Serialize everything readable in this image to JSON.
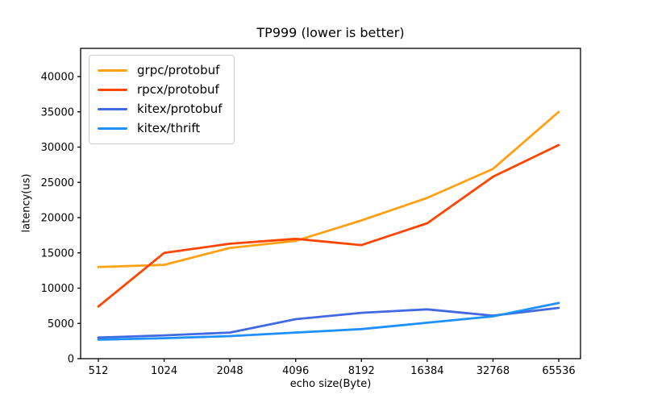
{
  "figure": {
    "background": "#ffffff",
    "axis_color": "#000000"
  },
  "chart_data": {
    "type": "line",
    "title": "TP999 (lower is better)",
    "xlabel": "echo size(Byte)",
    "ylabel": "latency(us)",
    "categories": [
      "512",
      "1024",
      "2048",
      "4096",
      "8192",
      "16384",
      "32768",
      "65536"
    ],
    "series": [
      {
        "name": "grpc/protobuf",
        "color": "#FFA113",
        "values": [
          13000,
          13300,
          15700,
          16700,
          19600,
          22800,
          26900,
          35000
        ]
      },
      {
        "name": "rpcx/protobuf",
        "color": "#FF4500",
        "values": [
          7400,
          15000,
          16300,
          17000,
          16100,
          19200,
          25800,
          30300
        ]
      },
      {
        "name": "kitex/protobuf",
        "color": "#4169E1",
        "values": [
          3000,
          3300,
          3700,
          5600,
          6500,
          7000,
          6100,
          7200
        ]
      },
      {
        "name": "kitex/thrift",
        "color": "#1E90FF",
        "values": [
          2700,
          2900,
          3200,
          3700,
          4200,
          5100,
          6000,
          7900
        ]
      }
    ],
    "ylim": [
      0,
      44000
    ],
    "yticks": [
      0,
      5000,
      10000,
      15000,
      20000,
      25000,
      30000,
      35000,
      40000
    ],
    "grid": false,
    "legend_position": "upper left"
  }
}
